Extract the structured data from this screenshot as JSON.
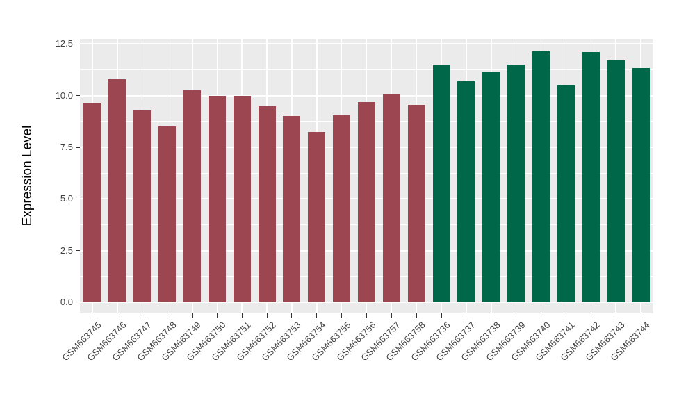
{
  "chart_data": {
    "type": "bar",
    "title": "",
    "ylabel": "Expression Level",
    "xlabel": "",
    "ylim": [
      -0.54,
      12.75
    ],
    "y_major_ticks": [
      0,
      2.5,
      5,
      7.5,
      10,
      12.5
    ],
    "y_tick_labels": [
      "0.0",
      "2.5",
      "5.0",
      "7.5",
      "10.0",
      "12.5"
    ],
    "y_minor_ticks": [
      1.25,
      3.75,
      6.25,
      8.75,
      11.25
    ],
    "grid": true,
    "legend_position": "none",
    "categories": [
      "GSM663745",
      "GSM663746",
      "GSM663747",
      "GSM663748",
      "GSM663749",
      "GSM663750",
      "GSM663751",
      "GSM663752",
      "GSM663753",
      "GSM663754",
      "GSM663755",
      "GSM663756",
      "GSM663757",
      "GSM663758",
      "GSM663736",
      "GSM663737",
      "GSM663738",
      "GSM663739",
      "GSM663740",
      "GSM663741",
      "GSM663742",
      "GSM663743",
      "GSM663744"
    ],
    "values": [
      9.65,
      10.8,
      9.3,
      8.5,
      10.25,
      10.0,
      10.0,
      9.5,
      9.0,
      8.25,
      9.05,
      9.7,
      10.05,
      9.55,
      11.5,
      10.7,
      11.15,
      11.5,
      12.15,
      10.5,
      12.1,
      11.7,
      11.35
    ],
    "bar_groups": [
      "group1",
      "group1",
      "group1",
      "group1",
      "group1",
      "group1",
      "group1",
      "group1",
      "group1",
      "group1",
      "group1",
      "group1",
      "group1",
      "group1",
      "group2",
      "group2",
      "group2",
      "group2",
      "group2",
      "group2",
      "group2",
      "group2",
      "group2"
    ],
    "group_colors": {
      "group1": "#9C4652",
      "group2": "#006849"
    },
    "panel_bg": "#EBEBEB",
    "grid_color": "#FFFFFF",
    "tick_mark_color": "#333333",
    "axis_text_color": "#424242"
  }
}
